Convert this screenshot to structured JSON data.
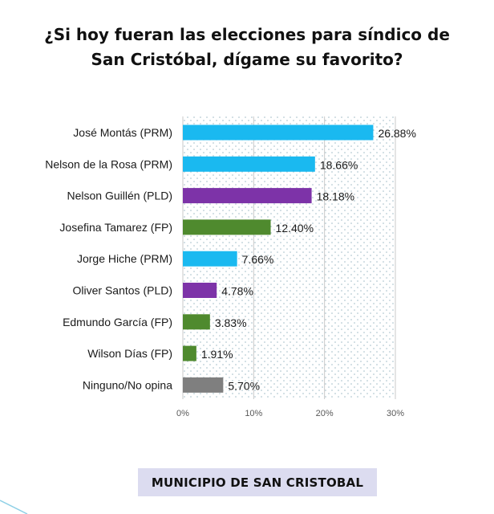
{
  "title": {
    "line1": "¿Si hoy fueran las elecciones para síndico de",
    "line2_bold": "San Cristóbal",
    "line2_rest": ", dígame su favorito?"
  },
  "colors": {
    "PRM": "#1ab9f0",
    "PLD": "#7d33a8",
    "FP": "#4f8a2e",
    "none": "#7f7f7f"
  },
  "chart_data": {
    "type": "bar",
    "orientation": "horizontal",
    "title": "¿Si hoy fueran las elecciones para síndico de San Cristóbal, dígame su favorito?",
    "categories": [
      "José Montás (PRM)",
      "Nelson de la Rosa (PRM)",
      "Nelson Guillén (PLD)",
      "Josefina Tamarez (FP)",
      "Jorge Hiche (PRM)",
      "Oliver Santos (PLD)",
      "Edmundo García (FP)",
      "Wilson Días (FP)",
      "Ninguno/No opina"
    ],
    "values": [
      26.88,
      18.66,
      18.18,
      12.4,
      7.66,
      4.78,
      3.83,
      1.91,
      5.7
    ],
    "value_labels": [
      "26.88%",
      "18.66%",
      "18.18%",
      "12.40%",
      "7.66%",
      "4.78%",
      "3.83%",
      "1.91%",
      "5.70%"
    ],
    "groups": [
      "PRM",
      "PRM",
      "PLD",
      "FP",
      "PRM",
      "PLD",
      "FP",
      "FP",
      "none"
    ],
    "xlim": [
      0,
      30
    ],
    "xticks": [
      0,
      10,
      20,
      30
    ],
    "xtick_labels": [
      "0%",
      "10%",
      "20%",
      "30%"
    ],
    "xlabel": "",
    "ylabel": "",
    "grid": true
  },
  "footer": {
    "label": "MUNICIPIO DE SAN CRISTOBAL"
  }
}
